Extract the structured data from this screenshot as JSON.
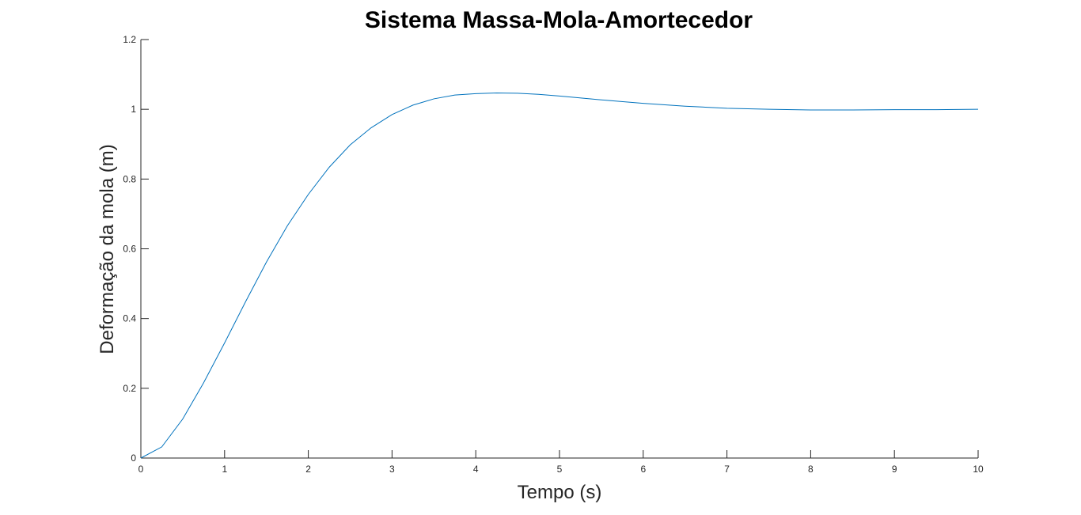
{
  "chart_data": {
    "type": "line",
    "title": "Sistema Massa-Mola-Amortecedor",
    "xlabel": "Tempo (s)",
    "ylabel": "Deformação da mola (m)",
    "xlim": [
      0,
      10
    ],
    "ylim": [
      0,
      1.2
    ],
    "x_ticks": [
      0,
      1,
      2,
      3,
      4,
      5,
      6,
      7,
      8,
      9,
      10
    ],
    "x_tick_labels": [
      "0",
      "1",
      "2",
      "3",
      "4",
      "5",
      "6",
      "7",
      "8",
      "9",
      "10"
    ],
    "y_ticks": [
      0,
      0.2,
      0.4,
      0.6,
      0.8,
      1.0,
      1.2
    ],
    "y_tick_labels": [
      "0",
      "0.2",
      "0.4",
      "0.6",
      "0.8",
      "1",
      "1.2"
    ],
    "grid": false,
    "legend": "none",
    "colors": {
      "series": "#0072BD",
      "axes": "#262626"
    },
    "series": [
      {
        "x": [
          0,
          0.25,
          0.5,
          0.75,
          1.0,
          1.25,
          1.5,
          1.75,
          2.0,
          2.25,
          2.5,
          2.75,
          3.0,
          3.25,
          3.5,
          3.75,
          4.0,
          4.25,
          4.5,
          4.75,
          5.0,
          5.5,
          6.0,
          6.5,
          7.0,
          7.5,
          8.0,
          8.5,
          9.0,
          9.5,
          10.0
        ],
        "y": [
          0,
          0.032,
          0.112,
          0.216,
          0.33,
          0.448,
          0.562,
          0.666,
          0.756,
          0.834,
          0.898,
          0.947,
          0.985,
          1.012,
          1.03,
          1.041,
          1.045,
          1.047,
          1.046,
          1.043,
          1.038,
          1.027,
          1.017,
          1.009,
          1.003,
          1.0,
          0.998,
          0.998,
          0.999,
          0.999,
          1.0
        ]
      }
    ]
  }
}
